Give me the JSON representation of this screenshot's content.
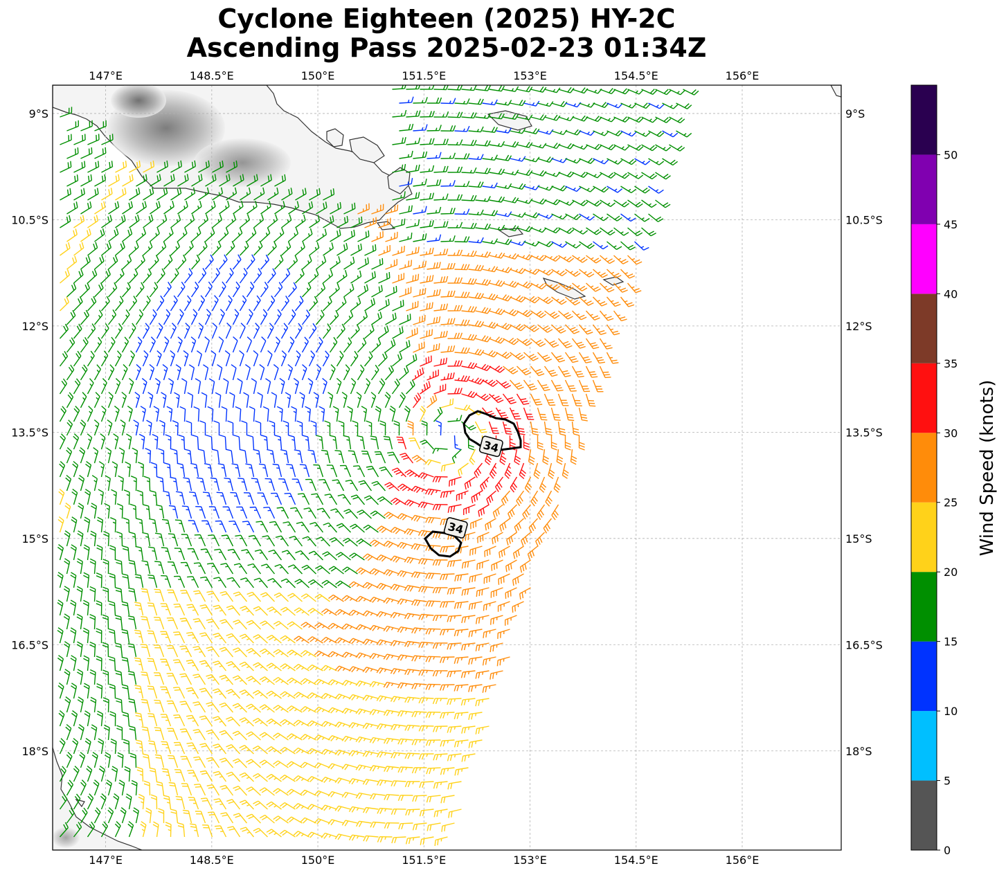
{
  "title": {
    "line1": "Cyclone Eighteen (2025) HY-2C",
    "line2": "Ascending Pass 2025-02-23 01:34Z"
  },
  "map": {
    "lon_range": [
      146.25,
      157.4
    ],
    "lat_range": [
      -19.4,
      -8.6
    ],
    "lon_ticks": [
      {
        "value": 147.0,
        "label": "147°E"
      },
      {
        "value": 148.5,
        "label": "148.5°E"
      },
      {
        "value": 150.0,
        "label": "150°E"
      },
      {
        "value": 151.5,
        "label": "151.5°E"
      },
      {
        "value": 153.0,
        "label": "153°E"
      },
      {
        "value": 154.5,
        "label": "154.5°E"
      },
      {
        "value": 156.0,
        "label": "156°E"
      }
    ],
    "lat_ticks": [
      {
        "value": -9.0,
        "label": "9°S"
      },
      {
        "value": -10.5,
        "label": "10.5°S"
      },
      {
        "value": -12.0,
        "label": "12°S"
      },
      {
        "value": -13.5,
        "label": "13.5°S"
      },
      {
        "value": -15.0,
        "label": "15°S"
      },
      {
        "value": -16.5,
        "label": "16.5°S"
      },
      {
        "value": -18.0,
        "label": "18°S"
      }
    ],
    "gridlines": true,
    "storm_center": {
      "lon": 151.85,
      "lat": -13.55
    },
    "contours": [
      {
        "label": "34",
        "level_kt": 34,
        "label_pos": {
          "lon": 152.45,
          "lat": -13.7
        }
      },
      {
        "label": "34",
        "level_kt": 34,
        "label_pos": {
          "lon": 151.95,
          "lat": -14.85
        }
      }
    ]
  },
  "colorbar": {
    "label": "Wind Speed (knots)",
    "ticks": [
      "0",
      "5",
      "10",
      "15",
      "20",
      "25",
      "30",
      "35",
      "40",
      "45",
      "50"
    ],
    "bins": [
      {
        "min": 0,
        "max": 5,
        "color": "#555555"
      },
      {
        "min": 5,
        "max": 10,
        "color": "#00bfff"
      },
      {
        "min": 10,
        "max": 15,
        "color": "#0033ff"
      },
      {
        "min": 15,
        "max": 20,
        "color": "#008f00"
      },
      {
        "min": 20,
        "max": 25,
        "color": "#ffd21a"
      },
      {
        "min": 25,
        "max": 30,
        "color": "#ff8c0a"
      },
      {
        "min": 30,
        "max": 35,
        "color": "#ff1010"
      },
      {
        "min": 35,
        "max": 40,
        "color": "#7d3a28"
      },
      {
        "min": 40,
        "max": 45,
        "color": "#ff00ff"
      },
      {
        "min": 45,
        "max": 50,
        "color": "#8000b0"
      },
      {
        "min": 50,
        "max": 55,
        "color": "#2a0050"
      }
    ]
  }
}
